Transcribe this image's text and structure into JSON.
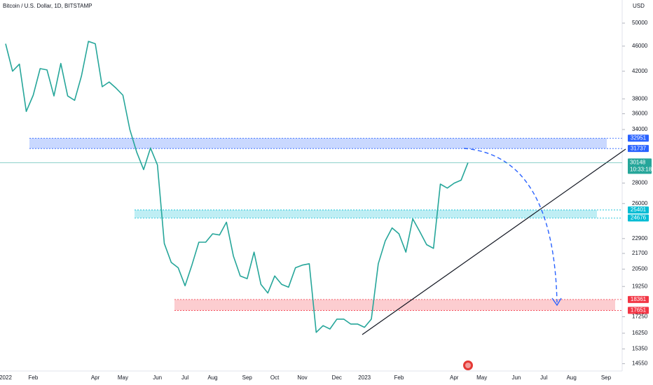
{
  "chart_data": {
    "type": "line",
    "title": "Bitcoin / U.S. Dollar, 1D, BITSTAMP",
    "y_axis_label": "USD",
    "categories": [
      "2022",
      null,
      null,
      null,
      "Feb",
      null,
      null,
      null,
      null,
      null,
      null,
      null,
      null,
      "Apr",
      null,
      null,
      null,
      "May",
      null,
      null,
      null,
      null,
      "Jun",
      null,
      null,
      null,
      "Jul",
      null,
      null,
      null,
      "Aug",
      null,
      null,
      null,
      null,
      "Sep",
      null,
      null,
      null,
      "Oct",
      null,
      null,
      null,
      "Nov",
      null,
      null,
      null,
      null,
      "Dec",
      null,
      null,
      null,
      "2023",
      null,
      null,
      null,
      null,
      "Feb",
      null,
      null,
      null,
      null,
      null,
      null,
      null,
      "Apr",
      null,
      null,
      null,
      "May",
      null,
      null,
      null,
      null,
      "Jun",
      null,
      null,
      null,
      "Jul",
      null,
      null,
      null,
      "Aug",
      null,
      null,
      null,
      null,
      "Sep"
    ],
    "values": [
      46400,
      42000,
      43100,
      36300,
      38500,
      42400,
      42200,
      38400,
      43200,
      38400,
      37800,
      41300,
      46800,
      46400,
      39700,
      40400,
      39500,
      38500,
      34000,
      31300,
      29400,
      31800,
      29900,
      22500,
      21000,
      20600,
      19300,
      20800,
      22600,
      22600,
      23300,
      23200,
      24300,
      21500,
      20000,
      19800,
      21800,
      19400,
      18800,
      20000,
      19400,
      19200,
      20600,
      20800,
      20900,
      16300,
      16700,
      16500,
      17100,
      17100,
      16800,
      16800,
      16600,
      17100,
      20900,
      22700,
      23800,
      23300,
      21800,
      24600,
      23500,
      22400,
      22100,
      27900,
      27500,
      28000,
      28300,
      30148,
      null,
      null,
      null,
      null,
      null,
      null,
      null,
      null,
      null,
      null,
      null,
      null,
      null,
      null,
      null,
      null,
      null,
      null,
      null,
      null
    ],
    "color": "#26a69a",
    "log_scale": true,
    "grid": false,
    "ylim": [
      14170,
      54370
    ],
    "yticks": [
      50000,
      46000,
      42000,
      38000,
      36000,
      34000,
      28000,
      26000,
      22900,
      21700,
      20500,
      19250,
      17250,
      16250,
      15350,
      14550
    ],
    "last_price": 30148,
    "countdown": "10:33:18",
    "zones": [
      {
        "low": 31737,
        "high": 32951,
        "color": "#2962ff"
      },
      {
        "low": 24676,
        "high": 25401,
        "color": "#00bcd4"
      },
      {
        "low": 17651,
        "high": 18361,
        "color": "#f23645"
      }
    ]
  }
}
